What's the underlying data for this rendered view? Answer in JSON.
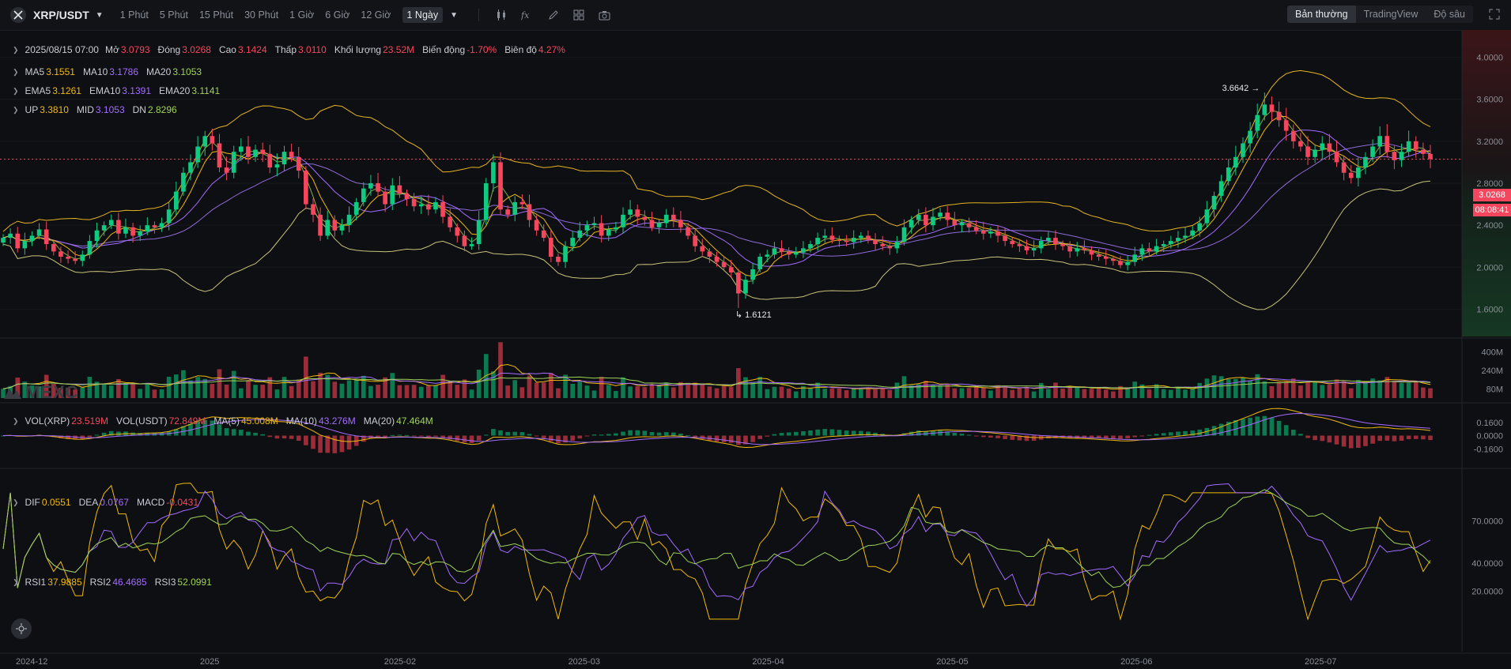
{
  "header": {
    "pair": "XRP/USDT",
    "timeframes": [
      "1 Phút",
      "5 Phút",
      "15 Phút",
      "30 Phút",
      "1 Giờ",
      "6 Giờ",
      "12 Giờ",
      "1 Ngày"
    ],
    "active_timeframe": "1 Ngày",
    "views": [
      "Bản thường",
      "TradingView",
      "Độ sâu"
    ],
    "active_view": "Bản thường"
  },
  "ohlc": {
    "date": "2025/08/15 07:00",
    "open_label": "Mở",
    "open": "3.0793",
    "close_label": "Đóng",
    "close": "3.0268",
    "high_label": "Cao",
    "high": "3.1424",
    "low_label": "Thấp",
    "low": "3.0110",
    "volume_label": "Khối lượng",
    "volume": "23.52M",
    "change_label": "Biến động",
    "change": "-1.70%",
    "amplitude_label": "Biên độ",
    "amplitude": "4.27%"
  },
  "ma": {
    "ma5_label": "MA5",
    "ma5": "3.1551",
    "ma10_label": "MA10",
    "ma10": "3.1786",
    "ma20_label": "MA20",
    "ma20": "3.1053"
  },
  "ema": {
    "ema5_label": "EMA5",
    "ema5": "3.1261",
    "ema10_label": "EMA10",
    "ema10": "3.1391",
    "ema20_label": "EMA20",
    "ema20": "3.1141"
  },
  "boll": {
    "up_label": "UP",
    "up": "3.3810",
    "mid_label": "MID",
    "mid": "3.1053",
    "dn_label": "DN",
    "dn": "2.8296"
  },
  "vol": {
    "xrp_label": "VOL(XRP)",
    "xrp": "23.519M",
    "usdt_label": "VOL(USDT)",
    "usdt": "72.849M",
    "ma5_label": "MA(5)",
    "ma5": "45.008M",
    "ma10_label": "MA(10)",
    "ma10": "43.276M",
    "ma20_label": "MA(20)",
    "ma20": "47.464M"
  },
  "macd": {
    "dif_label": "DIF",
    "dif": "0.0551",
    "dea_label": "DEA",
    "dea": "0.0767",
    "macd_label": "MACD",
    "macd": "-0.0431"
  },
  "rsi": {
    "rsi1_label": "RSI1",
    "rsi1": "37.9885",
    "rsi2_label": "RSI2",
    "rsi2": "46.4685",
    "rsi3_label": "RSI3",
    "rsi3": "52.0991"
  },
  "last_price": "3.0268",
  "countdown": "08:08:41",
  "watermark": "MEXC",
  "colors": {
    "up": "#0ecb81",
    "down": "#f6465d",
    "ma5": "#f0b90b",
    "ma10": "#a36cff",
    "ma20": "#9fd356",
    "boll": "#e6b422"
  },
  "chart_data": {
    "type": "candlestick",
    "series_name": "XRP/USDT",
    "x_labels": [
      "2024-12",
      "2025",
      "2025-02",
      "2025-03",
      "2025-04",
      "2025-05",
      "2025-06",
      "2025-07"
    ],
    "y_ticks": [
      "4.0000",
      "3.6000",
      "3.2000",
      "2.8000",
      "2.4000",
      "2.0000",
      "1.6000"
    ],
    "ylim": [
      1.4,
      4.2
    ],
    "annotations": {
      "high": "3.6642",
      "low": "1.6121"
    },
    "volume_ticks": [
      "400M",
      "240M",
      "80M"
    ],
    "macd_ticks": [
      "0.1600",
      "0.0000",
      "-0.1600"
    ],
    "rsi_ticks": [
      "70.0000",
      "40.0000",
      "20.0000"
    ],
    "close": [
      2.28,
      2.32,
      2.18,
      2.25,
      2.3,
      2.36,
      2.22,
      2.15,
      2.1,
      2.08,
      2.06,
      2.12,
      2.25,
      2.35,
      2.4,
      2.45,
      2.32,
      2.38,
      2.3,
      2.34,
      2.4,
      2.38,
      2.42,
      2.55,
      2.72,
      2.9,
      3.0,
      3.15,
      3.25,
      3.18,
      2.95,
      2.9,
      3.1,
      3.15,
      3.05,
      3.12,
      3.08,
      2.95,
      2.98,
      3.1,
      3.05,
      2.92,
      2.6,
      2.5,
      2.3,
      2.45,
      2.35,
      2.4,
      2.5,
      2.62,
      2.75,
      2.8,
      2.72,
      2.6,
      2.78,
      2.7,
      2.65,
      2.58,
      2.6,
      2.55,
      2.62,
      2.48,
      2.38,
      2.3,
      2.2,
      2.22,
      2.45,
      2.8,
      3.0,
      2.55,
      2.5,
      2.62,
      2.6,
      2.45,
      2.35,
      2.28,
      2.1,
      2.05,
      2.2,
      2.28,
      2.35,
      2.4,
      2.42,
      2.3,
      2.36,
      2.38,
      2.5,
      2.55,
      2.48,
      2.45,
      2.38,
      2.42,
      2.5,
      2.45,
      2.38,
      2.3,
      2.2,
      2.15,
      2.1,
      2.05,
      2.0,
      1.95,
      1.75,
      1.88,
      1.98,
      2.1,
      2.12,
      2.18,
      2.15,
      2.12,
      2.14,
      2.18,
      2.22,
      2.28,
      2.3,
      2.26,
      2.25,
      2.24,
      2.28,
      2.3,
      2.26,
      2.22,
      2.2,
      2.18,
      2.24,
      2.38,
      2.45,
      2.5,
      2.4,
      2.48,
      2.52,
      2.45,
      2.4,
      2.42,
      2.38,
      2.35,
      2.32,
      2.34,
      2.3,
      2.25,
      2.22,
      2.2,
      2.16,
      2.18,
      2.25,
      2.28,
      2.22,
      2.2,
      2.15,
      2.18,
      2.16,
      2.12,
      2.1,
      2.08,
      2.06,
      2.02,
      2.05,
      2.12,
      2.18,
      2.15,
      2.2,
      2.22,
      2.25,
      2.28,
      2.3,
      2.35,
      2.42,
      2.55,
      2.68,
      2.82,
      2.95,
      3.05,
      3.18,
      3.3,
      3.45,
      3.55,
      3.48,
      3.4,
      3.3,
      3.2,
      3.15,
      3.05,
      3.12,
      3.18,
      3.1,
      3.0,
      2.9,
      2.85,
      2.95,
      3.05,
      3.15,
      3.25,
      3.1,
      3.02,
      3.1,
      3.2,
      3.12,
      3.08,
      3.03
    ]
  }
}
